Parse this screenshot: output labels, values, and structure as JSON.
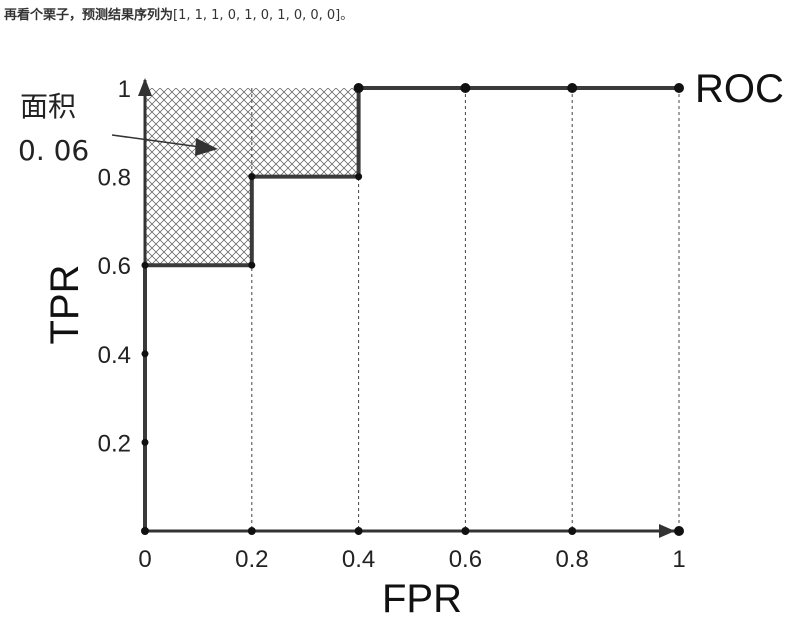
{
  "caption": {
    "bold": "再看个栗子，预测结果序列为",
    "sequence": "[1, 1, 1, 0, 1, 0, 1, 0, 0, 0]",
    "end": "。"
  },
  "chart_data": {
    "type": "line",
    "series": [
      {
        "name": "ROC",
        "x": [
          0,
          0,
          0,
          0,
          0.2,
          0.2,
          0.4,
          0.4,
          0.6,
          0.8,
          1
        ],
        "y": [
          0,
          0.2,
          0.4,
          0.6,
          0.6,
          0.8,
          0.8,
          1,
          1,
          1,
          1
        ]
      }
    ],
    "xlabel": "FPR",
    "ylabel": "TPR",
    "xlim": [
      0,
      1
    ],
    "ylim": [
      0,
      1
    ],
    "x_ticks": [
      "0",
      "0.2",
      "0.4",
      "0.6",
      "0.8",
      "1"
    ],
    "y_ticks": [
      "0.2",
      "0.4",
      "0.6",
      "0.8",
      "1"
    ],
    "x_tick_values": [
      0,
      0.2,
      0.4,
      0.6,
      0.8,
      1
    ],
    "y_tick_values": [
      0.2,
      0.4,
      0.6,
      0.8,
      1
    ],
    "shaded_region_y_from": 0.6,
    "annotation": {
      "line1": "面积",
      "line2": "0. 06"
    },
    "colors": {
      "line": "#3a3a3a",
      "hatch": "#555555"
    }
  }
}
